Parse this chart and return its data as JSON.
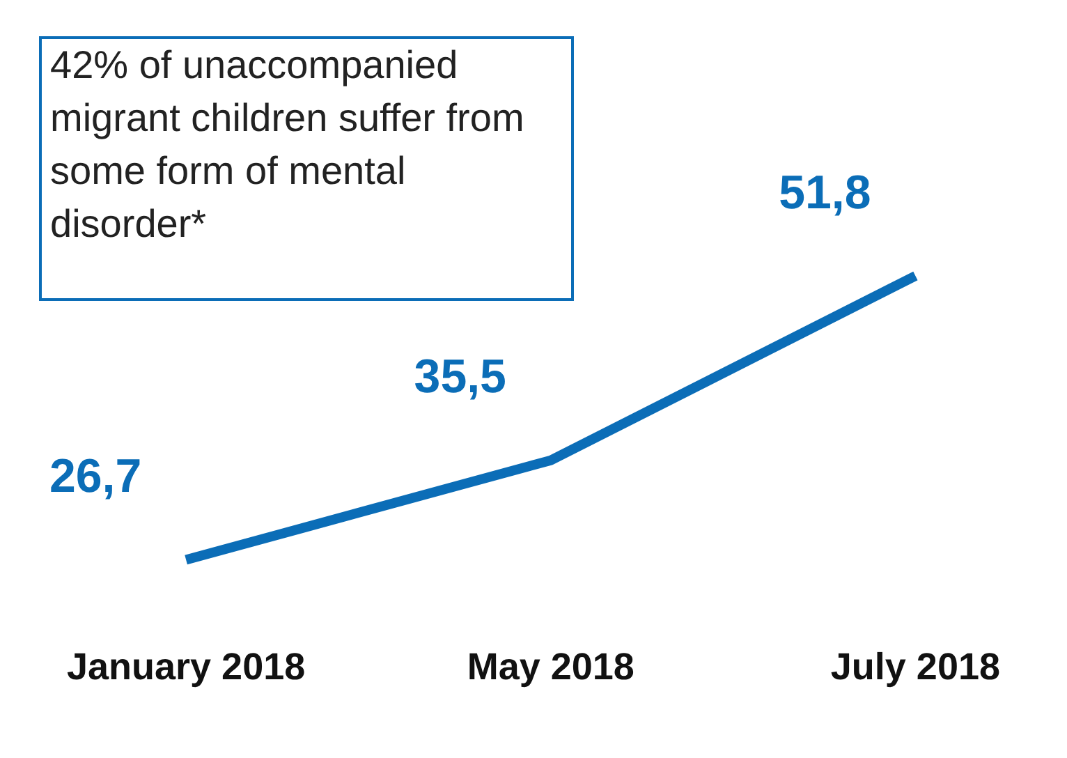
{
  "chart_data": {
    "type": "line",
    "categories": [
      "January 2018",
      "May 2018",
      "July 2018"
    ],
    "series": [
      {
        "color": "#0b6db7",
        "values": [
          26.7,
          35.5,
          51.8
        ],
        "value_labels": [
          "26,7",
          "35,5",
          "51,8"
        ]
      }
    ],
    "annotations": [
      "42% of unaccompanied migrant children suffer from some form of mental disorder*"
    ],
    "marker": "none",
    "grid": false,
    "legend": false
  }
}
